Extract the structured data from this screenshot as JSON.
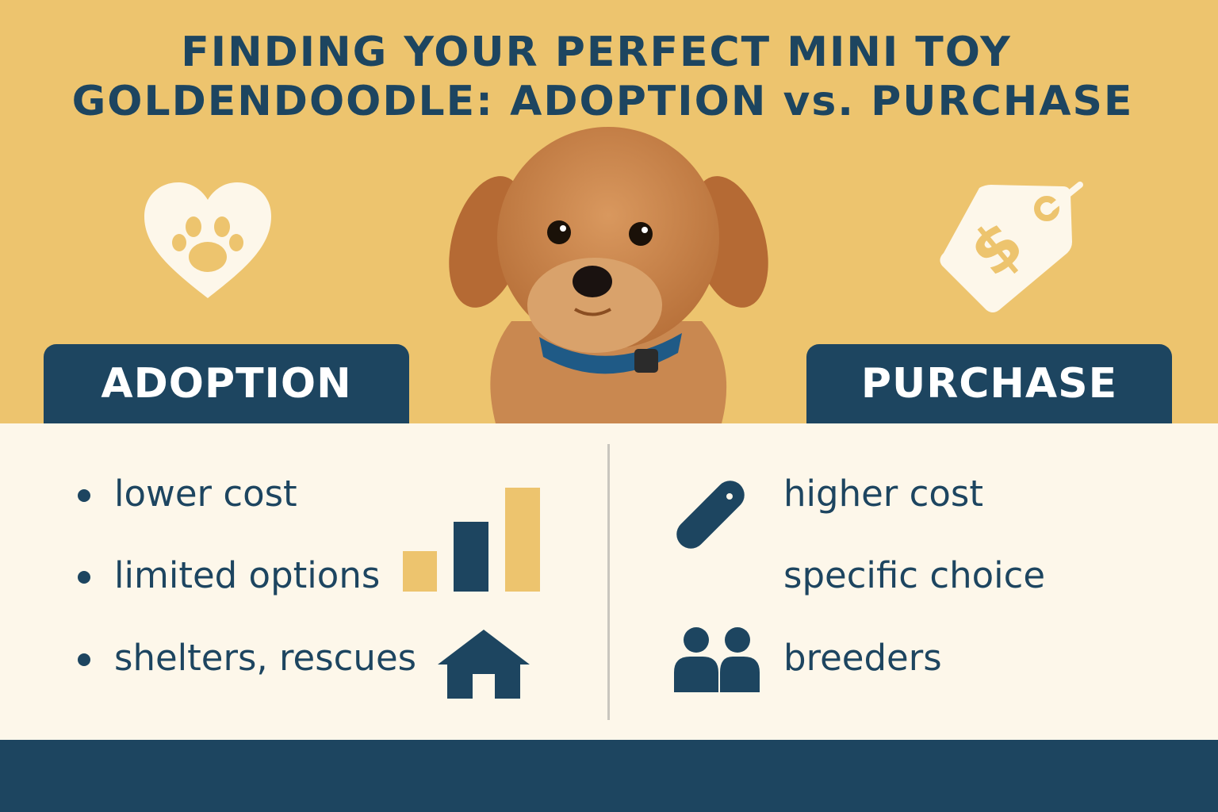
{
  "title": {
    "line1": "FINDING YOUR PERFECT MINI TOY",
    "line2": "GOLDENDOODLE: ADOPTION vs. PURCHASE"
  },
  "colors": {
    "background": "#EDC46E",
    "navy": "#1D4560",
    "cream": "#FDF7EA",
    "accent": "#EDC46E"
  },
  "adoption": {
    "label": "ADOPTION",
    "icon": "heart-paw-icon",
    "items": [
      "lower cost",
      "limited options",
      "shelters, rescues"
    ],
    "item_icons": [
      "bar-chart-icon",
      "house-icon"
    ]
  },
  "purchase": {
    "label": "PURCHASE",
    "icon": "price-tag-dollar-icon",
    "items": [
      "higher cost",
      "specific choice",
      "breeders"
    ],
    "item_icons": [
      "tag-icon",
      "people-icon"
    ]
  },
  "image": {
    "subject": "puppy-photo"
  }
}
